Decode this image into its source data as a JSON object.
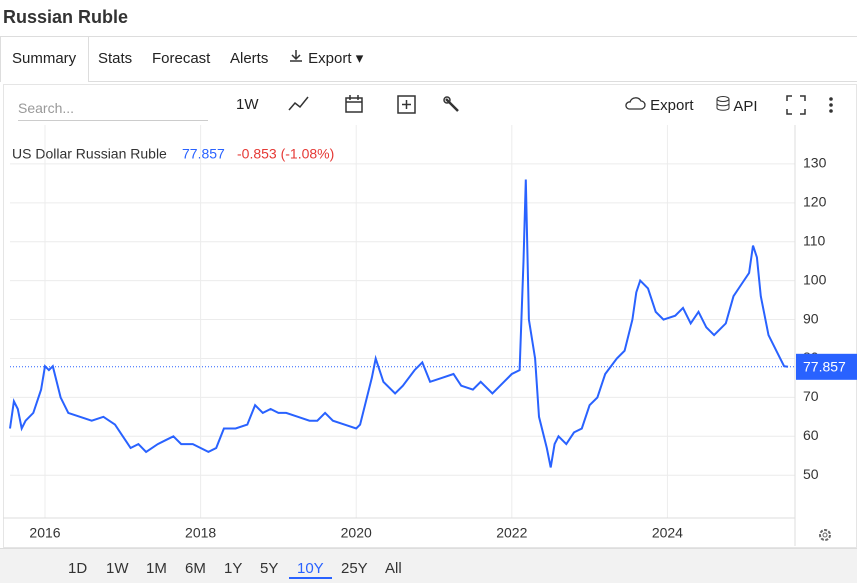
{
  "header": {
    "title": "Russian Ruble"
  },
  "tabs": [
    "Summary",
    "Stats",
    "Forecast",
    "Alerts"
  ],
  "export_menu": "Export",
  "toolbar": {
    "search_placeholder": "Search...",
    "interval": "1W",
    "export": "Export",
    "api": "API"
  },
  "chart_data": {
    "type": "line",
    "legend": {
      "name": "US Dollar Russian Ruble",
      "value": 77.857,
      "change": "-0.853 (-1.08%)"
    },
    "x": [
      2015.55,
      2015.6,
      2015.65,
      2015.7,
      2015.75,
      2015.85,
      2015.95,
      2016.0,
      2016.05,
      2016.1,
      2016.15,
      2016.2,
      2016.3,
      2016.45,
      2016.6,
      2016.75,
      2016.9,
      2017.0,
      2017.1,
      2017.2,
      2017.3,
      2017.45,
      2017.55,
      2017.65,
      2017.75,
      2017.9,
      2018.0,
      2018.1,
      2018.2,
      2018.3,
      2018.45,
      2018.6,
      2018.7,
      2018.8,
      2018.9,
      2019.0,
      2019.1,
      2019.25,
      2019.4,
      2019.5,
      2019.6,
      2019.7,
      2019.85,
      2020.0,
      2020.05,
      2020.2,
      2020.25,
      2020.35,
      2020.5,
      2020.6,
      2020.75,
      2020.85,
      2020.95,
      2021.1,
      2021.25,
      2021.35,
      2021.5,
      2021.6,
      2021.75,
      2021.9,
      2022.0,
      2022.1,
      2022.15,
      2022.18,
      2022.22,
      2022.3,
      2022.35,
      2022.45,
      2022.5,
      2022.55,
      2022.6,
      2022.7,
      2022.8,
      2022.9,
      2023.0,
      2023.1,
      2023.2,
      2023.35,
      2023.45,
      2023.55,
      2023.6,
      2023.65,
      2023.75,
      2023.85,
      2023.95,
      2024.1,
      2024.2,
      2024.3,
      2024.4,
      2024.5,
      2024.6,
      2024.75,
      2024.85,
      2024.95,
      2025.05,
      2025.1,
      2025.15,
      2025.2,
      2025.3,
      2025.4,
      2025.5,
      2025.55
    ],
    "series": [
      {
        "name": "US Dollar Russian Ruble",
        "color": "#2962ff",
        "values": [
          62,
          69,
          67,
          62,
          64,
          66,
          72,
          78,
          77,
          78,
          74,
          70,
          66,
          65,
          64,
          65,
          63,
          60,
          57,
          58,
          56,
          58,
          59,
          60,
          58,
          58,
          57,
          56,
          57,
          62,
          62,
          63,
          68,
          66,
          67,
          66,
          66,
          65,
          64,
          64,
          66,
          64,
          63,
          62,
          63,
          75,
          80,
          74,
          71,
          73,
          77,
          79,
          74,
          75,
          76,
          73,
          72,
          74,
          71,
          74,
          76,
          77,
          105,
          126,
          90,
          80,
          65,
          57,
          52,
          58,
          60,
          58,
          61,
          62,
          68,
          70,
          76,
          80,
          82,
          90,
          97,
          100,
          98,
          92,
          90,
          91,
          93,
          89,
          92,
          88,
          86,
          89,
          96,
          99,
          102,
          109,
          106,
          96,
          86,
          82,
          78,
          77.857
        ]
      }
    ],
    "xlim": [
      2015.55,
      2025.64
    ],
    "xticks": [
      2016,
      2018,
      2020,
      2022,
      2024
    ],
    "ylim": [
      39,
      140
    ],
    "yticks": [
      50,
      60,
      70,
      80,
      90,
      100,
      110,
      120,
      130
    ],
    "grid": true
  },
  "range_buttons": [
    "1D",
    "1W",
    "1M",
    "6M",
    "1Y",
    "5Y",
    "10Y",
    "25Y",
    "All"
  ],
  "selected_range": 6
}
